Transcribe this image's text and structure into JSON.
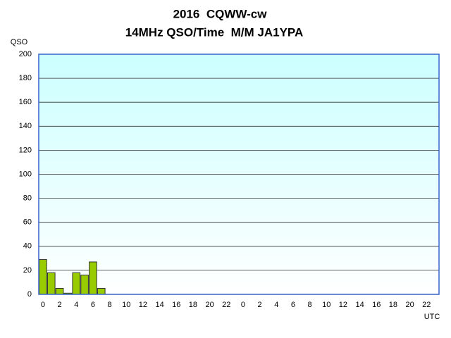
{
  "chart_data": {
    "type": "bar",
    "title": "2016  CQWW-cw",
    "subtitle": "14MHz QSO/Time  M/M JA1YPA",
    "y_label": "QSO",
    "x_label": "UTC",
    "categories": [
      "0",
      null,
      "2",
      null,
      "4",
      null,
      "6",
      null,
      "8",
      null,
      "10",
      null,
      "12",
      null,
      "14",
      null,
      "16",
      null,
      "18",
      null,
      "20",
      null,
      "22",
      null,
      "0",
      null,
      "2",
      null,
      "4",
      null,
      "6",
      null,
      "8",
      null,
      "10",
      null,
      "12",
      null,
      "14",
      null,
      "16",
      null,
      "18",
      null,
      "20",
      null,
      "22",
      null
    ],
    "values": [
      29,
      18,
      5,
      1,
      18,
      16,
      27,
      5,
      0,
      0,
      0,
      0,
      0,
      0,
      0,
      0,
      0,
      0,
      0,
      0,
      0,
      0,
      0,
      0,
      0,
      0,
      0,
      0,
      0,
      0,
      0,
      0,
      0,
      0,
      0,
      0,
      0,
      0,
      0,
      0,
      0,
      0,
      0,
      0,
      0,
      0,
      0,
      0
    ],
    "color": "#99cc00",
    "ylim": [
      0,
      200
    ],
    "yticks": [
      0,
      20,
      40,
      60,
      80,
      100,
      120,
      140,
      160,
      180,
      200
    ],
    "grid": true
  }
}
